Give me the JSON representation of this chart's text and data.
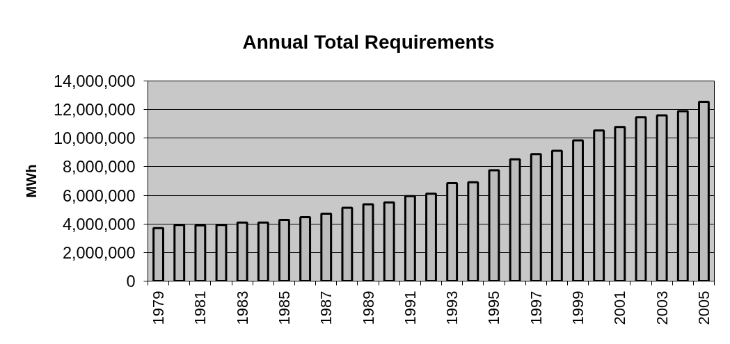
{
  "chart_data": {
    "type": "bar",
    "title": "Annual Total Requirements",
    "ylabel": "MWh",
    "categories": [
      "1979",
      null,
      "1981",
      null,
      "1983",
      null,
      "1985",
      null,
      "1987",
      null,
      "1989",
      null,
      "1991",
      null,
      "1993",
      null,
      "1995",
      null,
      "1997",
      null,
      "1999",
      null,
      "2001",
      null,
      "2003",
      null,
      "2005"
    ],
    "series": [
      {
        "color": "#bcbcbc",
        "values": [
          3710000,
          3930000,
          3900000,
          3930000,
          4100000,
          4100000,
          4280000,
          4470000,
          4720000,
          5130000,
          5370000,
          5500000,
          5940000,
          6110000,
          6860000,
          6920000,
          7750000,
          8520000,
          8880000,
          9110000,
          9840000,
          10540000,
          10780000,
          11460000,
          11590000,
          11890000,
          12540000
        ]
      }
    ],
    "ylim": [
      0,
      14000000
    ],
    "yticks": [
      0,
      {
        "value": 2000000,
        "label": "2,000,000"
      },
      {
        "value": 4000000,
        "label": "4,000,000"
      },
      {
        "value": 6000000,
        "label": "6,000,000"
      },
      {
        "value": 8000000,
        "label": "8,000,000"
      },
      {
        "value": 10000000,
        "label": "10,000,000"
      },
      {
        "value": 12000000,
        "label": "12,000,000"
      },
      {
        "value": 14000000,
        "label": "14,000,000"
      }
    ],
    "grid": "y"
  }
}
